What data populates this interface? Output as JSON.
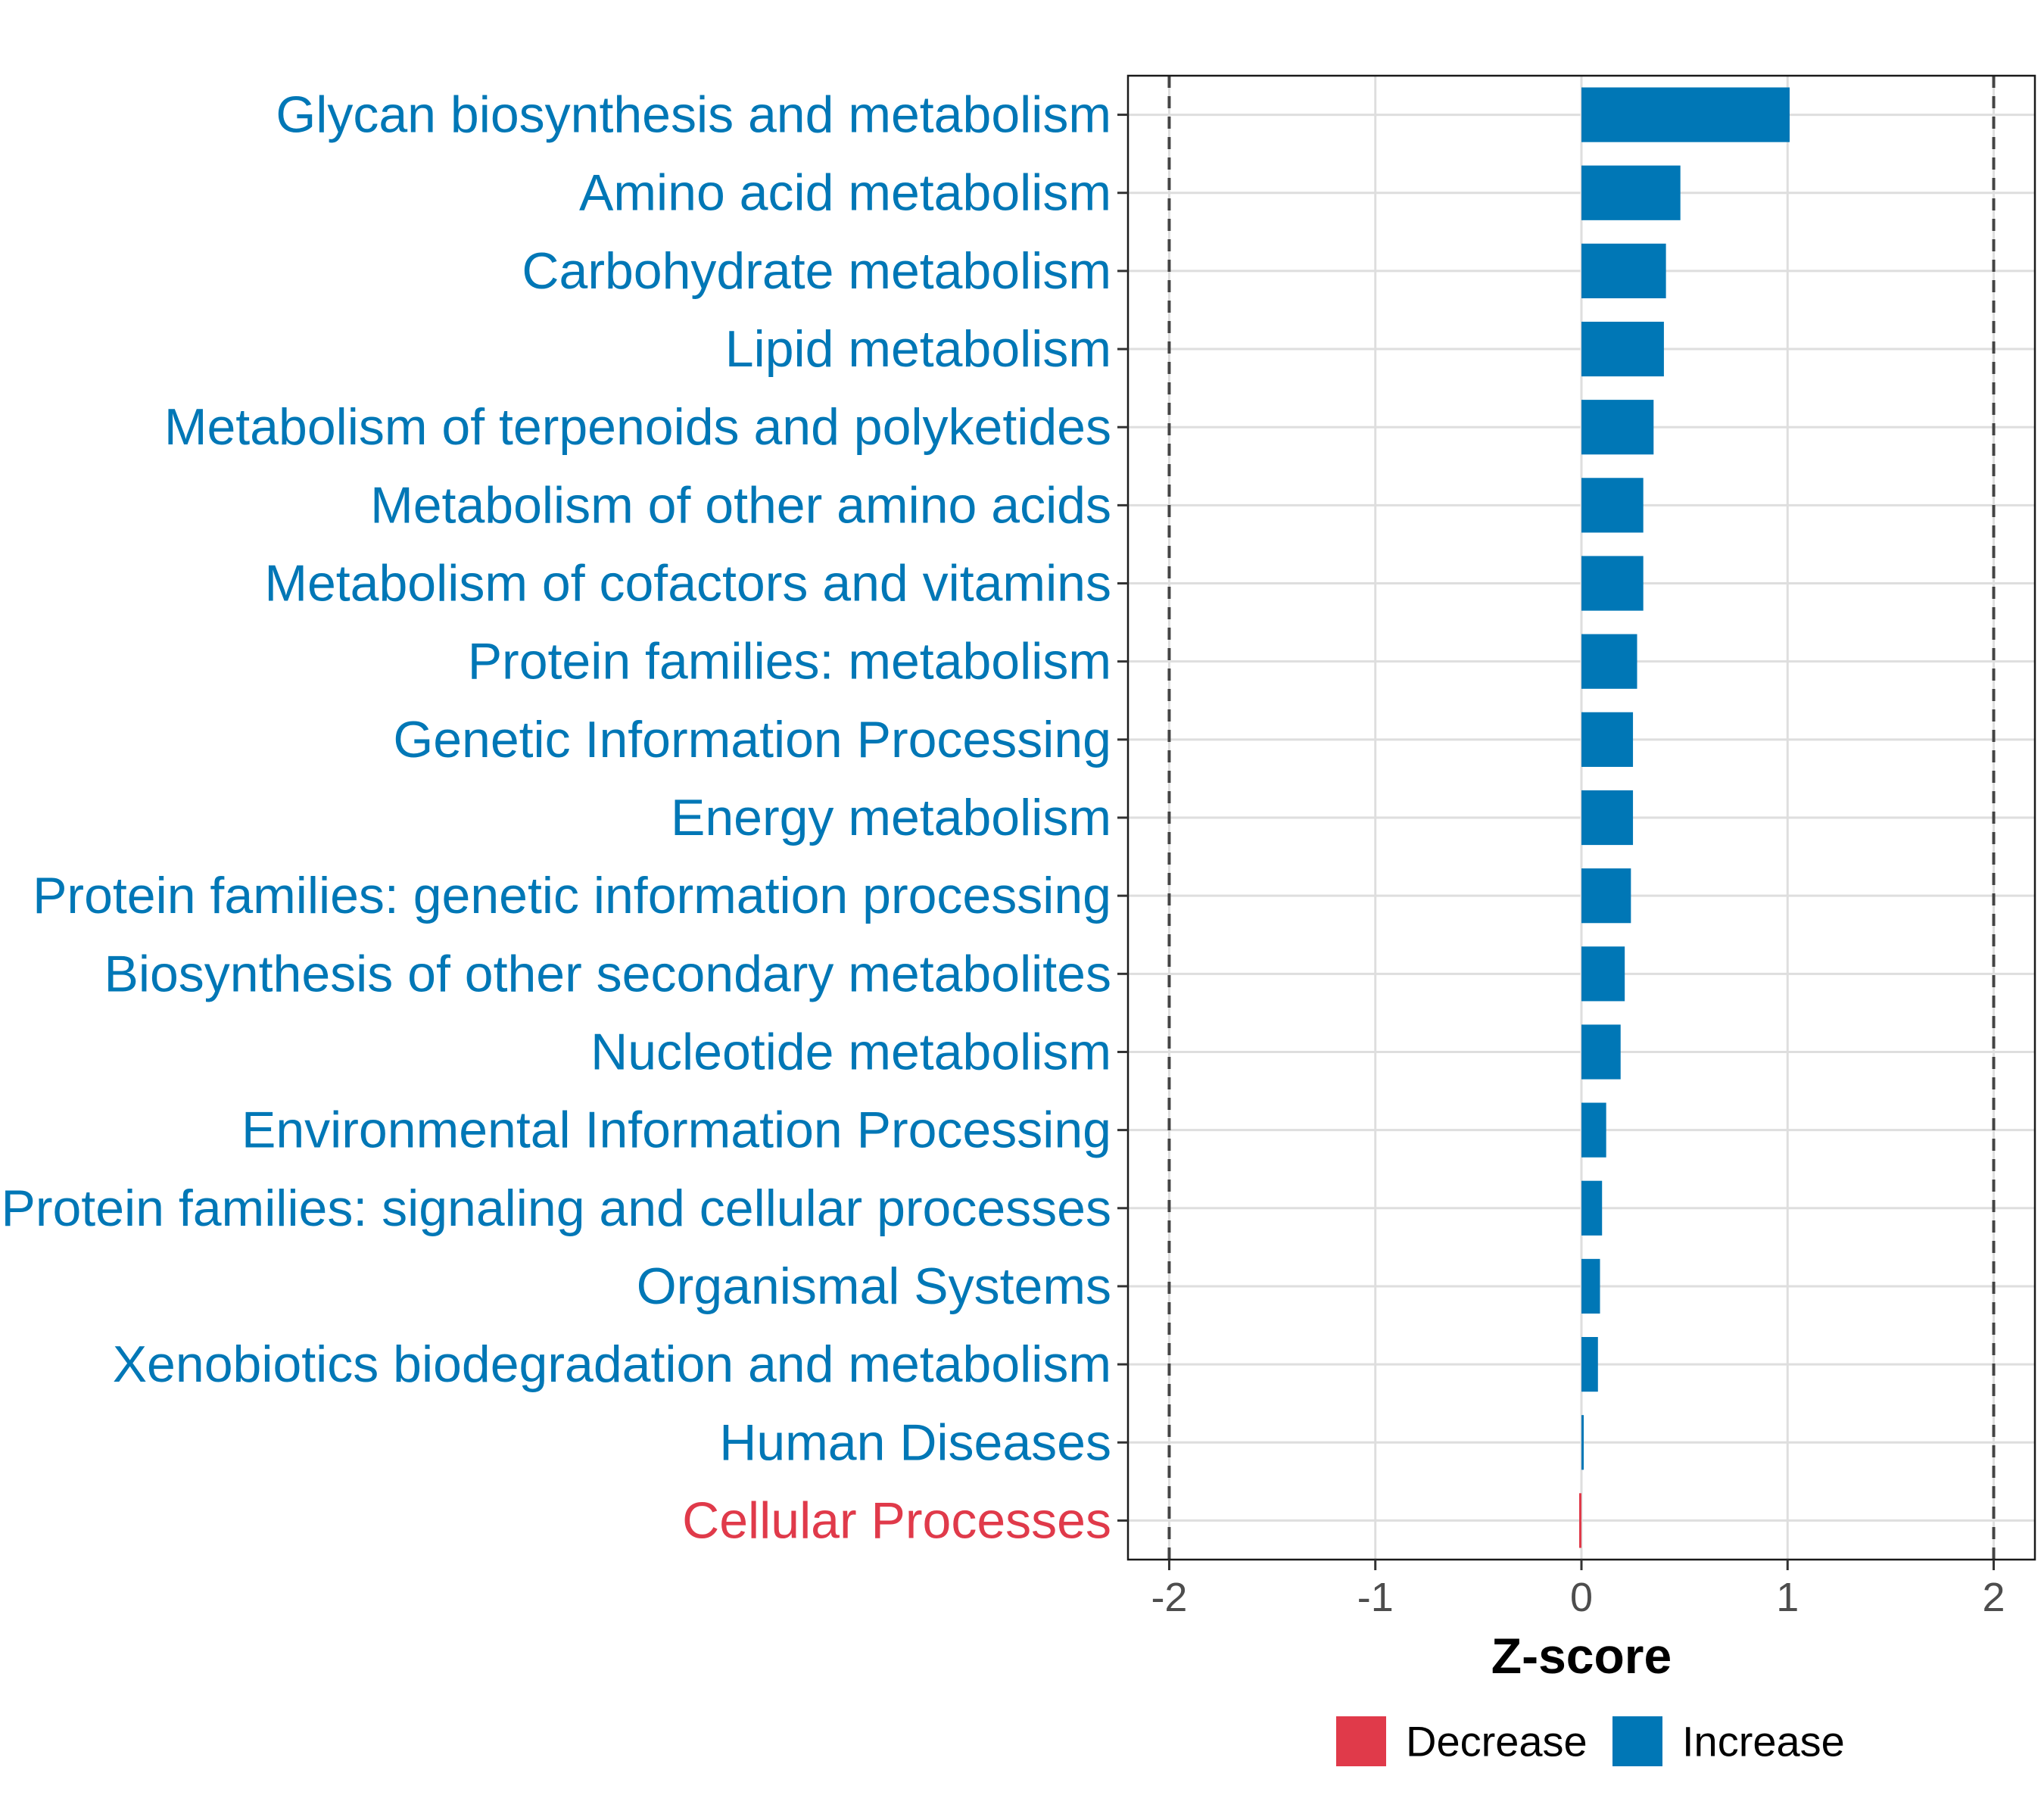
{
  "chart_data": {
    "type": "bar",
    "orientation": "horizontal",
    "title": "",
    "xlabel": "Z-score",
    "ylabel": "",
    "xlim": [
      -2.2,
      2.2
    ],
    "xticks": [
      -2,
      -1,
      0,
      1,
      2
    ],
    "xtick_labels": [
      "-2",
      "-1",
      "0",
      "1",
      "2"
    ],
    "reference_lines": [
      -2,
      2
    ],
    "grid": true,
    "categories": [
      "Glycan biosynthesis and metabolism",
      "Amino acid metabolism",
      "Carbohydrate metabolism",
      "Lipid metabolism",
      "Metabolism of terpenoids and polyketides",
      "Metabolism of other amino acids",
      "Metabolism of cofactors and vitamins",
      "Protein families: metabolism",
      "Genetic Information Processing",
      "Energy metabolism",
      "Protein families: genetic information processing",
      "Biosynthesis of other secondary metabolites",
      "Nucleotide metabolism",
      "Environmental Information Processing",
      "Protein families: signaling and cellular processes",
      "Organismal Systems",
      "Xenobiotics biodegradation and metabolism",
      "Human Diseases",
      "Cellular Processes"
    ],
    "values": [
      1.01,
      0.48,
      0.41,
      0.4,
      0.35,
      0.3,
      0.3,
      0.27,
      0.25,
      0.25,
      0.24,
      0.21,
      0.19,
      0.12,
      0.1,
      0.09,
      0.08,
      0.01,
      -0.01
    ],
    "groups": [
      "Increase",
      "Increase",
      "Increase",
      "Increase",
      "Increase",
      "Increase",
      "Increase",
      "Increase",
      "Increase",
      "Increase",
      "Increase",
      "Increase",
      "Increase",
      "Increase",
      "Increase",
      "Increase",
      "Increase",
      "Increase",
      "Decrease"
    ],
    "legend": {
      "position": "bottom",
      "entries": [
        {
          "label": "Decrease",
          "color": "#e03a4a"
        },
        {
          "label": "Increase",
          "color": "#0077b6"
        }
      ]
    }
  }
}
